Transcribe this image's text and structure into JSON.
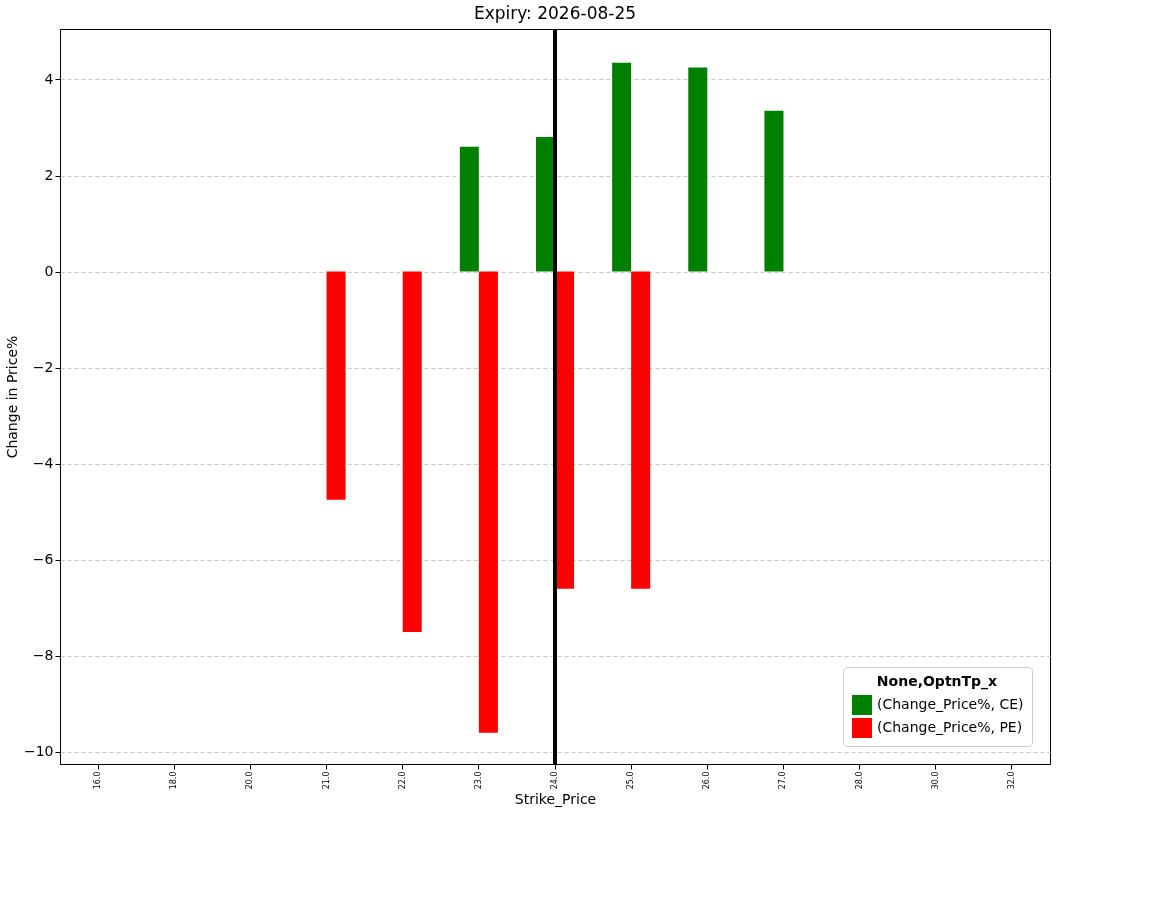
{
  "chart_data": {
    "type": "bar",
    "title": "Expiry: 2026-08-25",
    "xlabel": "Strike_Price",
    "ylabel": "Change in Price%",
    "categories": [
      "16.0",
      "18.0",
      "20.0",
      "21.0",
      "22.0",
      "23.0",
      "24.0",
      "25.0",
      "26.0",
      "27.0",
      "28.0",
      "30.0",
      "32.0"
    ],
    "series": [
      {
        "name": "(Change_Price%, CE)",
        "color": "#008000",
        "values": [
          null,
          null,
          null,
          null,
          null,
          2.6,
          2.8,
          4.35,
          4.25,
          3.35,
          null,
          null,
          null
        ]
      },
      {
        "name": "(Change_Price%, PE)",
        "color": "#ff0000",
        "values": [
          null,
          null,
          null,
          -4.75,
          -7.5,
          -9.6,
          -6.6,
          -6.6,
          null,
          null,
          null,
          null,
          null
        ]
      }
    ],
    "legend_title": "None,OptnTp_x",
    "legend": "bottom right",
    "ylim": [
      -10.25,
      5.05
    ],
    "yticks": [
      -10,
      -8,
      -6,
      -4,
      -2,
      0,
      2,
      4
    ],
    "grid": "y",
    "ref_lines": [
      {
        "axis": "x",
        "value": "24.0",
        "color": "#000000"
      }
    ]
  }
}
